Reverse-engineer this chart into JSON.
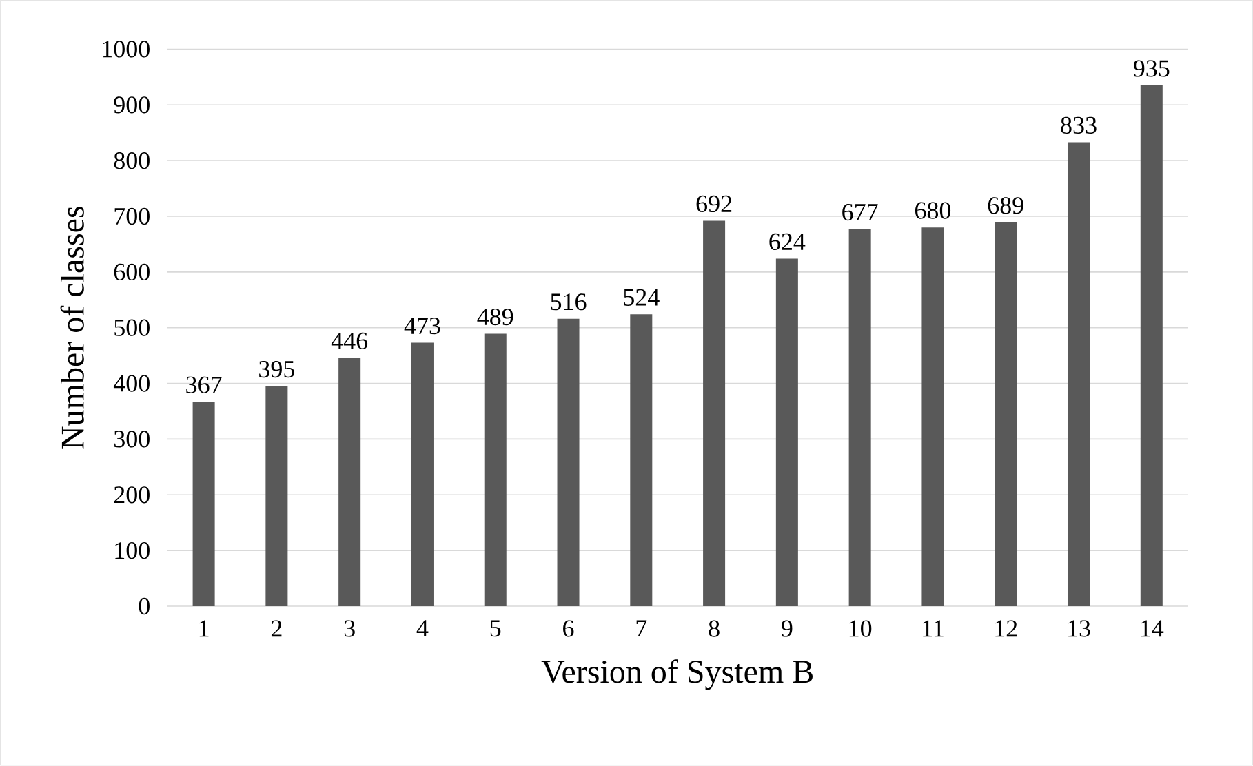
{
  "chart_data": {
    "type": "bar",
    "xlabel": "Version of System B",
    "ylabel": "Number of classes",
    "categories": [
      "1",
      "2",
      "3",
      "4",
      "5",
      "6",
      "7",
      "8",
      "9",
      "10",
      "11",
      "12",
      "13",
      "14"
    ],
    "values": [
      367,
      395,
      446,
      473,
      489,
      516,
      524,
      692,
      624,
      677,
      680,
      689,
      833,
      935
    ],
    "color": "#595959",
    "ylim": [
      0,
      1000
    ],
    "yticks": [
      0,
      100,
      200,
      300,
      400,
      500,
      600,
      700,
      800,
      900,
      1000
    ],
    "grid": "y",
    "data_labels": true
  }
}
